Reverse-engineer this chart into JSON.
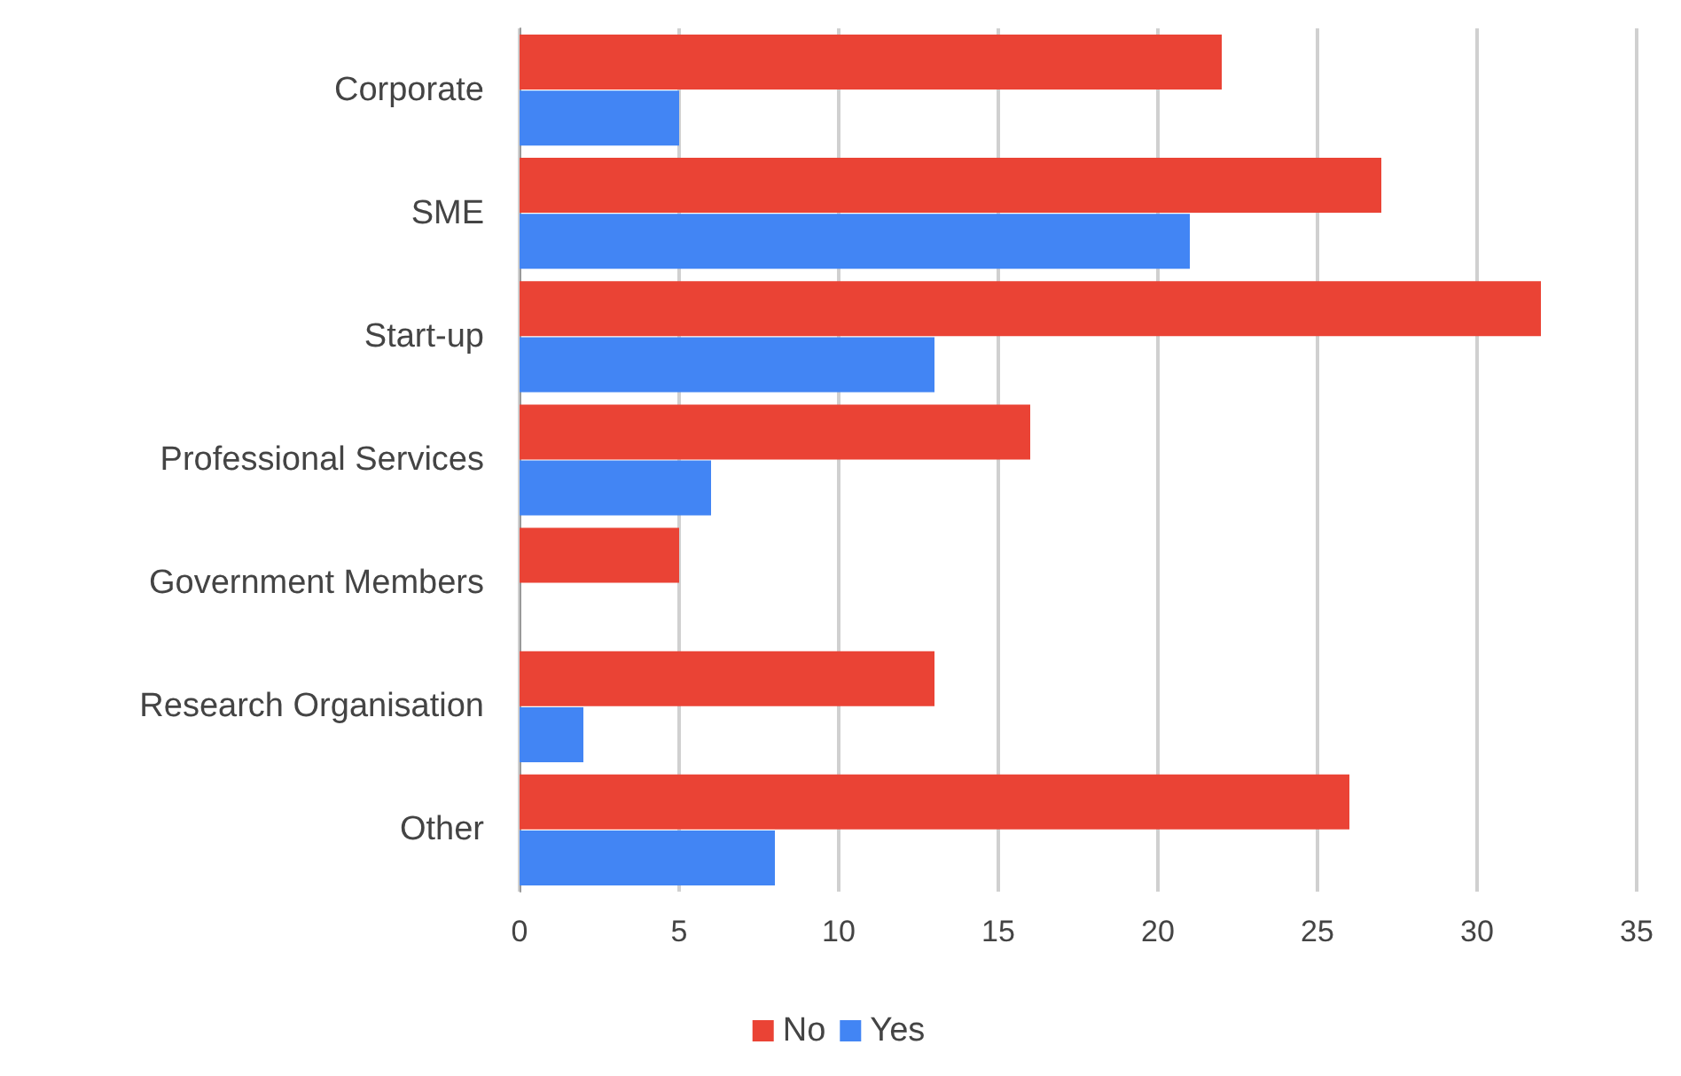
{
  "chart_data": {
    "type": "bar",
    "orientation": "horizontal",
    "categories": [
      "Corporate",
      "SME",
      "Start-up",
      "Professional Services",
      "Government Members",
      "Research Organisation",
      "Other"
    ],
    "series": [
      {
        "name": "No",
        "color": "#ea4335",
        "values": [
          22,
          27,
          32,
          16,
          5,
          13,
          26
        ]
      },
      {
        "name": "Yes",
        "color": "#4285f4",
        "values": [
          5,
          21,
          13,
          6,
          0,
          2,
          8
        ]
      }
    ],
    "xlim": [
      0,
      35
    ],
    "xticks": [
      0,
      5,
      10,
      15,
      20,
      25,
      30,
      35
    ],
    "grid": "x",
    "legend": "bottom"
  }
}
